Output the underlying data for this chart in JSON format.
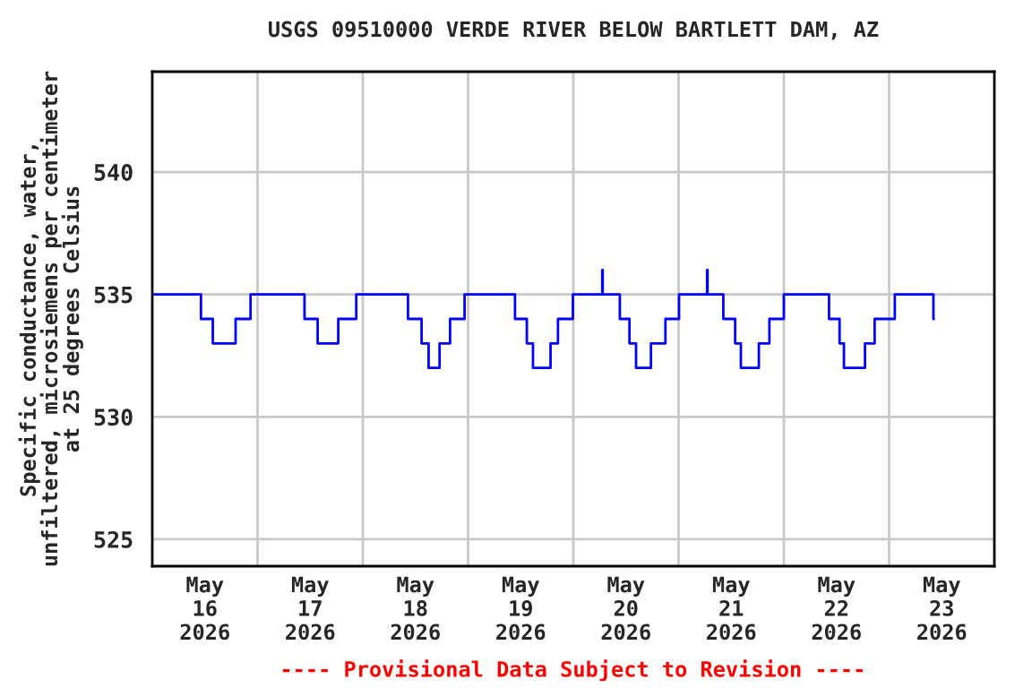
{
  "chart_data": {
    "type": "step",
    "title": "USGS 09510000 VERDE RIVER BELOW BARTLETT DAM, AZ",
    "ylabel": "Specific conductance, water,\nunfiltered, microsiemens per centimeter\nat 25 degrees Celsius",
    "x": [
      "2026-05-16T00:00",
      "2026-05-16T11:06",
      "2026-05-16T13:48",
      "2026-05-16T19:00",
      "2026-05-16T22:24",
      "2026-05-17T10:42",
      "2026-05-17T13:42",
      "2026-05-17T18:24",
      "2026-05-17T22:30",
      "2026-05-18T10:18",
      "2026-05-18T13:24",
      "2026-05-18T15:00",
      "2026-05-18T17:30",
      "2026-05-18T19:54",
      "2026-05-18T23:12",
      "2026-05-19T10:42",
      "2026-05-19T13:24",
      "2026-05-19T14:48",
      "2026-05-19T18:48",
      "2026-05-19T20:30",
      "2026-05-19T23:54",
      "2026-05-20T06:36",
      "2026-05-20T06:42",
      "2026-05-20T10:36",
      "2026-05-20T12:48",
      "2026-05-20T14:18",
      "2026-05-20T17:42",
      "2026-05-20T21:00",
      "2026-05-21T00:06",
      "2026-05-21T06:30",
      "2026-05-21T06:36",
      "2026-05-21T10:12",
      "2026-05-21T12:54",
      "2026-05-21T14:12",
      "2026-05-21T18:18",
      "2026-05-21T20:42",
      "2026-05-22T00:00",
      "2026-05-22T10:18",
      "2026-05-22T12:42",
      "2026-05-22T13:42",
      "2026-05-22T18:30",
      "2026-05-22T20:42",
      "2026-05-23T01:18",
      "2026-05-23T10:06",
      "2026-05-23T10:12"
    ],
    "series": [
      {
        "color": "#0000ff",
        "values": [
          535,
          534,
          533,
          534,
          535,
          534,
          533,
          534,
          535,
          534,
          533,
          532,
          533,
          534,
          535,
          534,
          533,
          532,
          533,
          534,
          535,
          536,
          535,
          534,
          533,
          532,
          533,
          534,
          535,
          536,
          535,
          534,
          533,
          532,
          533,
          534,
          535,
          534,
          533,
          532,
          533,
          534,
          535,
          534,
          534
        ]
      }
    ],
    "xlim": [
      "2026-05-16T00:00",
      "2026-05-24T00:00"
    ],
    "xticks": [
      {
        "value": "2026-05-16T12:00",
        "label": "May\n16\n2026"
      },
      {
        "value": "2026-05-17T12:00",
        "label": "May\n17\n2026"
      },
      {
        "value": "2026-05-18T12:00",
        "label": "May\n18\n2026"
      },
      {
        "value": "2026-05-19T12:00",
        "label": "May\n19\n2026"
      },
      {
        "value": "2026-05-20T12:00",
        "label": "May\n20\n2026"
      },
      {
        "value": "2026-05-21T12:00",
        "label": "May\n21\n2026"
      },
      {
        "value": "2026-05-22T12:00",
        "label": "May\n22\n2026"
      },
      {
        "value": "2026-05-23T12:00",
        "label": "May\n23\n2026"
      },
      {
        "value": "2026-05-17T00:00",
        "label": null
      },
      {
        "value": "2026-05-18T00:00",
        "label": null
      },
      {
        "value": "2026-05-19T00:00",
        "label": null
      },
      {
        "value": "2026-05-20T00:00",
        "label": null
      },
      {
        "value": "2026-05-21T00:00",
        "label": null
      },
      {
        "value": "2026-05-22T00:00",
        "label": null
      },
      {
        "value": "2026-05-23T00:00",
        "label": null
      }
    ],
    "ylim": [
      523.9,
      544.1
    ],
    "yticks": [
      525,
      530,
      535,
      540
    ],
    "grid": true,
    "annotations": [
      "---- Provisional Data Subject to Revision ----"
    ]
  }
}
